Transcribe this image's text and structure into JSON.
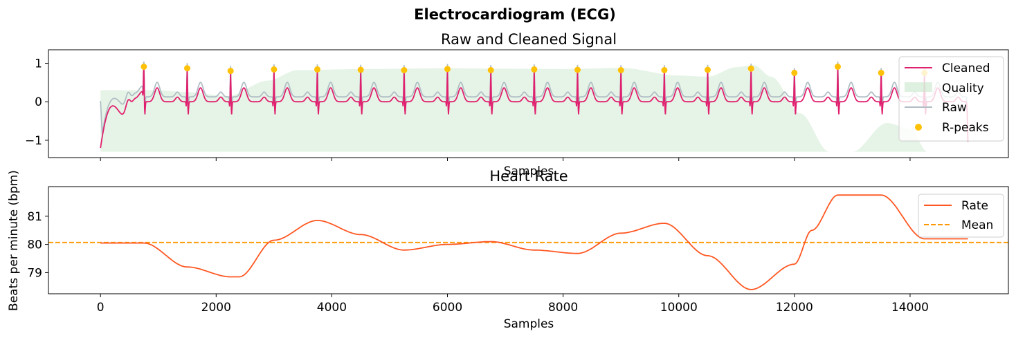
{
  "figure": {
    "title": "Electrocardiogram (ECG)"
  },
  "chart_data": [
    {
      "type": "line",
      "title": "Raw and Cleaned Signal",
      "xlabel": "Samples",
      "ylabel": "",
      "xlim": [
        -900,
        15700
      ],
      "ylim": [
        -1.45,
        1.35
      ],
      "y_ticks": [
        -1,
        0,
        1
      ],
      "y_tick_labels": [
        "−1",
        "0",
        "1"
      ],
      "x_ticks": [
        0,
        2000,
        4000,
        6000,
        8000,
        10000,
        12000,
        14000
      ],
      "x_tick_labels_shown": false,
      "grid": false,
      "legend_position": "top-right",
      "beat_interval_samples": 750,
      "r_peaks": {
        "x": [
          750,
          1500,
          2250,
          3000,
          3750,
          4500,
          5250,
          6000,
          6750,
          7500,
          8250,
          9000,
          9750,
          10500,
          11250,
          12000,
          12750,
          13500,
          14250
        ],
        "y": [
          0.91,
          0.87,
          0.8,
          0.84,
          0.84,
          0.83,
          0.82,
          0.85,
          0.82,
          0.84,
          0.83,
          0.82,
          0.82,
          0.83,
          0.86,
          0.75,
          0.91,
          0.75,
          0.75
        ]
      },
      "quality": {
        "baseline": -1.3,
        "x": [
          0,
          1000,
          1500,
          2200,
          2900,
          3400,
          4500,
          6000,
          7000,
          8000,
          9000,
          10000,
          10500,
          11000,
          11300,
          11600,
          12100,
          12600,
          13000,
          13600,
          14000,
          14300
        ],
        "y": [
          0.3,
          0.3,
          0.25,
          0.15,
          0.55,
          0.82,
          0.85,
          0.87,
          0.86,
          0.85,
          0.88,
          0.68,
          0.65,
          0.9,
          0.95,
          0.65,
          -0.3,
          -1.3,
          -1.3,
          -0.55,
          -0.7,
          -1.3
        ]
      },
      "series": [
        {
          "name": "Cleaned",
          "color": "#e0206e"
        },
        {
          "name": "Quality",
          "color": "#c8e6c9"
        },
        {
          "name": "Raw",
          "color": "#b0bec5"
        },
        {
          "name": "R-peaks",
          "color": "#ffc107"
        }
      ]
    },
    {
      "type": "line",
      "title": "Heart Rate",
      "xlabel": "Samples",
      "ylabel": "Beats per minute (bpm)",
      "xlim": [
        -900,
        15700
      ],
      "ylim": [
        78.25,
        82.05
      ],
      "y_ticks": [
        79,
        80,
        81
      ],
      "x_ticks": [
        0,
        2000,
        4000,
        6000,
        8000,
        10000,
        12000,
        14000
      ],
      "grid": false,
      "legend_position": "top-right",
      "mean": 80.07,
      "rate": {
        "x": [
          0,
          750,
          1500,
          2250,
          2400,
          3000,
          3750,
          4500,
          5250,
          6000,
          6750,
          7500,
          8250,
          9000,
          9750,
          10500,
          11250,
          12000,
          12300,
          12750,
          13500,
          14250,
          15000
        ],
        "y": [
          80.05,
          80.05,
          79.2,
          78.85,
          78.85,
          80.15,
          80.85,
          80.35,
          79.8,
          80.0,
          80.1,
          79.8,
          79.68,
          80.4,
          80.75,
          79.6,
          78.4,
          79.3,
          80.5,
          81.75,
          81.75,
          80.2,
          80.2
        ]
      },
      "series": [
        {
          "name": "Rate",
          "color": "#ff5722"
        },
        {
          "name": "Mean",
          "color": "#ff9800"
        }
      ]
    }
  ]
}
